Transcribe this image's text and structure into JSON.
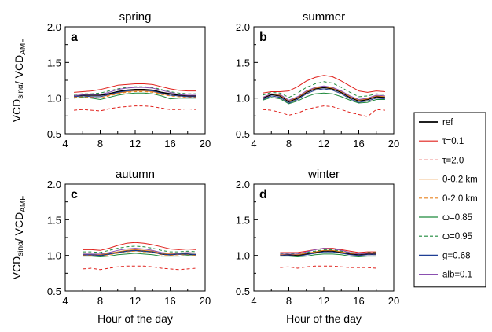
{
  "chart_data": {
    "type": "line",
    "y_axis_label": {
      "main1": "VCD",
      "sub1": "sinα",
      "sep": "/ ",
      "main2": "VCD",
      "sub2": "AMF"
    },
    "x_axis_label": "Hour of the day",
    "xlim": [
      4,
      20
    ],
    "ylim": [
      0.5,
      2.0
    ],
    "x_ticks": [
      4,
      8,
      12,
      16,
      20
    ],
    "y_ticks": [
      0.5,
      1.0,
      1.5,
      2.0
    ],
    "legend": {
      "placement": "right",
      "entries": [
        {
          "label": "ref",
          "color": "#000000",
          "dashed": false,
          "width": 1.6
        },
        {
          "label": "τ=0.1",
          "color": "#e0201b",
          "dashed": false,
          "width": 1.0
        },
        {
          "label": "τ=2.0",
          "color": "#e0201b",
          "dashed": true,
          "width": 1.0
        },
        {
          "label": "0-0.2 km",
          "color": "#e8821e",
          "dashed": false,
          "width": 1.0
        },
        {
          "label": "0-2.0 km",
          "color": "#e8821e",
          "dashed": true,
          "width": 1.0
        },
        {
          "label": "ω=0.85",
          "color": "#1f8a3c",
          "dashed": false,
          "width": 1.0
        },
        {
          "label": "ω=0.95",
          "color": "#1f8a3c",
          "dashed": true,
          "width": 1.0
        },
        {
          "label": "g=0.68",
          "color": "#1f3f95",
          "dashed": false,
          "width": 1.0
        },
        {
          "label": "alb=0.1",
          "color": "#8a4fb0",
          "dashed": false,
          "width": 1.0
        }
      ]
    },
    "panels": [
      {
        "title": "spring",
        "letter": "a",
        "x": [
          5,
          6,
          7,
          8,
          9,
          10,
          11,
          12,
          13,
          14,
          15,
          16,
          17,
          18,
          19
        ],
        "series": [
          {
            "legend_index": 0,
            "values": [
              1.03,
              1.04,
              1.04,
              1.04,
              1.06,
              1.09,
              1.11,
              1.12,
              1.12,
              1.11,
              1.08,
              1.06,
              1.04,
              1.03,
              1.03
            ]
          },
          {
            "legend_index": 1,
            "values": [
              1.08,
              1.09,
              1.1,
              1.12,
              1.15,
              1.18,
              1.19,
              1.2,
              1.2,
              1.19,
              1.16,
              1.13,
              1.11,
              1.1,
              1.1
            ]
          },
          {
            "legend_index": 2,
            "values": [
              0.83,
              0.84,
              0.83,
              0.82,
              0.85,
              0.87,
              0.88,
              0.89,
              0.89,
              0.88,
              0.86,
              0.84,
              0.84,
              0.85,
              0.84
            ]
          },
          {
            "legend_index": 3,
            "values": [
              1.02,
              1.03,
              1.02,
              1.02,
              1.04,
              1.07,
              1.09,
              1.1,
              1.1,
              1.09,
              1.06,
              1.04,
              1.03,
              1.02,
              1.02
            ]
          },
          {
            "legend_index": 4,
            "values": [
              1.01,
              1.02,
              1.01,
              1.0,
              1.03,
              1.06,
              1.08,
              1.09,
              1.09,
              1.08,
              1.05,
              1.03,
              1.02,
              1.01,
              1.01
            ]
          },
          {
            "legend_index": 5,
            "values": [
              1.0,
              1.01,
              1.0,
              0.98,
              1.01,
              1.04,
              1.06,
              1.07,
              1.07,
              1.06,
              1.03,
              0.99,
              1.0,
              1.0,
              1.0
            ]
          },
          {
            "legend_index": 6,
            "values": [
              1.05,
              1.06,
              1.06,
              1.07,
              1.1,
              1.13,
              1.15,
              1.16,
              1.16,
              1.15,
              1.12,
              1.09,
              1.07,
              1.06,
              1.06
            ]
          },
          {
            "legend_index": 7,
            "values": [
              1.02,
              1.03,
              1.02,
              1.02,
              1.05,
              1.08,
              1.1,
              1.11,
              1.11,
              1.1,
              1.07,
              1.04,
              1.03,
              1.02,
              1.02
            ]
          },
          {
            "legend_index": 8,
            "values": [
              1.03,
              1.05,
              1.05,
              1.05,
              1.08,
              1.12,
              1.14,
              1.15,
              1.15,
              1.14,
              1.11,
              1.08,
              1.05,
              1.04,
              1.04
            ]
          }
        ]
      },
      {
        "title": "summer",
        "letter": "b",
        "x": [
          5,
          6,
          7,
          8,
          9,
          10,
          11,
          12,
          13,
          14,
          15,
          16,
          17,
          18,
          19
        ],
        "series": [
          {
            "legend_index": 0,
            "values": [
              1.0,
              1.05,
              1.03,
              0.95,
              1.0,
              1.08,
              1.13,
              1.15,
              1.13,
              1.08,
              1.01,
              0.96,
              0.98,
              1.02,
              1.01
            ]
          },
          {
            "legend_index": 1,
            "values": [
              1.07,
              1.09,
              1.09,
              1.1,
              1.16,
              1.24,
              1.29,
              1.32,
              1.3,
              1.24,
              1.17,
              1.1,
              1.08,
              1.1,
              1.09
            ]
          },
          {
            "legend_index": 2,
            "values": [
              0.84,
              0.83,
              0.8,
              0.76,
              0.79,
              0.84,
              0.87,
              0.89,
              0.88,
              0.84,
              0.8,
              0.77,
              0.74,
              0.84,
              0.83
            ]
          },
          {
            "legend_index": 3,
            "values": [
              1.01,
              1.06,
              1.04,
              0.96,
              1.01,
              1.09,
              1.14,
              1.16,
              1.14,
              1.09,
              1.02,
              0.97,
              0.99,
              1.03,
              1.02
            ]
          },
          {
            "legend_index": 4,
            "values": [
              0.99,
              1.03,
              1.01,
              0.93,
              0.98,
              1.06,
              1.11,
              1.13,
              1.11,
              1.06,
              0.99,
              0.94,
              0.96,
              1.0,
              1.0
            ]
          },
          {
            "legend_index": 5,
            "values": [
              0.97,
              1.01,
              0.99,
              0.92,
              0.96,
              1.02,
              1.06,
              1.07,
              1.06,
              1.02,
              0.97,
              0.93,
              0.94,
              0.98,
              0.98
            ]
          },
          {
            "legend_index": 6,
            "values": [
              1.04,
              1.08,
              1.07,
              1.01,
              1.07,
              1.15,
              1.2,
              1.23,
              1.21,
              1.15,
              1.08,
              1.02,
              1.03,
              1.06,
              1.05
            ]
          },
          {
            "legend_index": 7,
            "values": [
              0.98,
              1.03,
              1.01,
              0.93,
              0.98,
              1.06,
              1.11,
              1.13,
              1.11,
              1.06,
              0.99,
              0.94,
              0.96,
              1.0,
              0.99
            ]
          },
          {
            "legend_index": 8,
            "values": [
              1.01,
              1.06,
              1.05,
              0.97,
              1.02,
              1.1,
              1.15,
              1.17,
              1.15,
              1.1,
              1.03,
              0.98,
              1.0,
              1.04,
              1.03
            ]
          }
        ]
      },
      {
        "title": "autumn",
        "letter": "c",
        "x": [
          6,
          7,
          8,
          9,
          10,
          11,
          12,
          13,
          14,
          15,
          16,
          17,
          18,
          19
        ],
        "series": [
          {
            "legend_index": 0,
            "values": [
              1.01,
              1.01,
              1.0,
              1.02,
              1.04,
              1.06,
              1.07,
              1.06,
              1.05,
              1.02,
              1.01,
              1.02,
              1.02,
              1.01
            ]
          },
          {
            "legend_index": 1,
            "values": [
              1.08,
              1.08,
              1.07,
              1.1,
              1.14,
              1.17,
              1.18,
              1.17,
              1.15,
              1.12,
              1.09,
              1.08,
              1.09,
              1.08
            ]
          },
          {
            "legend_index": 2,
            "values": [
              0.81,
              0.82,
              0.8,
              0.82,
              0.84,
              0.85,
              0.85,
              0.85,
              0.84,
              0.82,
              0.81,
              0.8,
              0.81,
              0.82
            ]
          },
          {
            "legend_index": 3,
            "values": [
              1.02,
              1.02,
              1.01,
              1.03,
              1.05,
              1.07,
              1.08,
              1.07,
              1.06,
              1.03,
              1.02,
              1.03,
              1.04,
              1.03
            ]
          },
          {
            "legend_index": 4,
            "values": [
              1.0,
              1.0,
              0.99,
              1.01,
              1.03,
              1.05,
              1.06,
              1.05,
              1.04,
              1.01,
              1.0,
              1.01,
              1.01,
              1.0
            ]
          },
          {
            "legend_index": 5,
            "values": [
              0.99,
              0.99,
              0.98,
              0.99,
              1.01,
              1.02,
              1.03,
              1.02,
              1.01,
              0.99,
              0.99,
              0.99,
              1.0,
              0.99
            ]
          },
          {
            "legend_index": 6,
            "values": [
              1.05,
              1.05,
              1.04,
              1.07,
              1.1,
              1.12,
              1.13,
              1.12,
              1.1,
              1.07,
              1.05,
              1.05,
              1.06,
              1.05
            ]
          },
          {
            "legend_index": 7,
            "values": [
              1.01,
              1.01,
              1.0,
              1.02,
              1.04,
              1.06,
              1.07,
              1.06,
              1.05,
              1.02,
              1.01,
              1.02,
              1.02,
              1.01
            ]
          },
          {
            "legend_index": 8,
            "values": [
              1.02,
              1.02,
              1.02,
              1.04,
              1.07,
              1.09,
              1.1,
              1.09,
              1.07,
              1.04,
              1.03,
              1.03,
              1.04,
              1.03
            ]
          }
        ]
      },
      {
        "title": "winter",
        "letter": "d",
        "x": [
          7,
          8,
          9,
          10,
          11,
          12,
          13,
          14,
          15,
          16,
          17,
          18
        ],
        "series": [
          {
            "legend_index": 0,
            "values": [
              1.01,
              1.01,
              1.0,
              1.02,
              1.04,
              1.06,
              1.06,
              1.04,
              1.02,
              1.01,
              1.02,
              1.02
            ]
          },
          {
            "legend_index": 1,
            "values": [
              1.04,
              1.04,
              1.04,
              1.06,
              1.08,
              1.1,
              1.1,
              1.08,
              1.06,
              1.04,
              1.05,
              1.05
            ]
          },
          {
            "legend_index": 2,
            "values": [
              0.83,
              0.84,
              0.82,
              0.84,
              0.85,
              0.85,
              0.85,
              0.84,
              0.83,
              0.83,
              0.83,
              0.82
            ]
          },
          {
            "legend_index": 3,
            "values": [
              1.01,
              1.02,
              1.01,
              1.03,
              1.05,
              1.07,
              1.07,
              1.05,
              1.03,
              1.02,
              1.03,
              1.03
            ]
          },
          {
            "legend_index": 4,
            "values": [
              1.0,
              1.0,
              0.99,
              1.01,
              1.03,
              1.05,
              1.05,
              1.03,
              1.01,
              1.0,
              1.01,
              1.01
            ]
          },
          {
            "legend_index": 5,
            "values": [
              0.99,
              0.99,
              0.98,
              0.99,
              1.01,
              1.02,
              1.02,
              1.01,
              0.99,
              0.98,
              0.99,
              0.99
            ]
          },
          {
            "legend_index": 6,
            "values": [
              1.03,
              1.03,
              1.02,
              1.04,
              1.06,
              1.08,
              1.08,
              1.06,
              1.04,
              1.03,
              1.04,
              1.04
            ]
          },
          {
            "legend_index": 7,
            "values": [
              1.0,
              1.0,
              0.99,
              1.01,
              1.03,
              1.05,
              1.05,
              1.03,
              1.01,
              1.0,
              1.01,
              1.01
            ]
          },
          {
            "legend_index": 8,
            "values": [
              1.02,
              1.02,
              1.02,
              1.05,
              1.08,
              1.1,
              1.09,
              1.07,
              1.04,
              1.02,
              1.03,
              1.03
            ]
          }
        ]
      }
    ]
  }
}
